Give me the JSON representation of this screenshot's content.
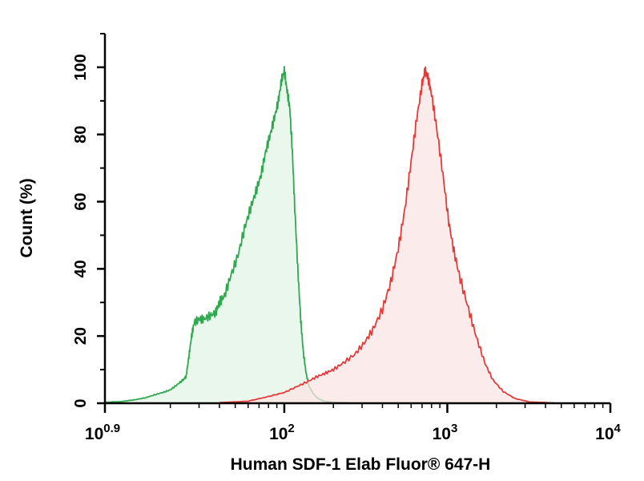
{
  "chart_data": {
    "type": "area",
    "title": "",
    "xlabel": "Human SDF-1 Elab Fluor® 647-H",
    "ylabel": "Count (%)",
    "x_scale": "log10",
    "xlim": [
      7.94,
      10000
    ],
    "ylim": [
      0,
      110
    ],
    "x_ticks": [
      {
        "value": 7.94,
        "base": "10",
        "exp": "0.9"
      },
      {
        "value": 100,
        "base": "10",
        "exp": "2"
      },
      {
        "value": 1000,
        "base": "10",
        "exp": "3"
      },
      {
        "value": 10000,
        "base": "10",
        "exp": "4"
      }
    ],
    "y_ticks": [
      0,
      20,
      40,
      60,
      80,
      100
    ],
    "grid": false,
    "legend": "none",
    "series": [
      {
        "color": "#2fa84f",
        "fill": "#e3f4e6",
        "points": [
          [
            8.0,
            0.3
          ],
          [
            10,
            0.5
          ],
          [
            12,
            1
          ],
          [
            14,
            1.6
          ],
          [
            16,
            2.5
          ],
          [
            18,
            3.2
          ],
          [
            20,
            4
          ],
          [
            22,
            5.5
          ],
          [
            24,
            7
          ],
          [
            25,
            8
          ],
          [
            26,
            14
          ],
          [
            27,
            20
          ],
          [
            28,
            24
          ],
          [
            30,
            25
          ],
          [
            32,
            25
          ],
          [
            35,
            26
          ],
          [
            38,
            27
          ],
          [
            40,
            30
          ],
          [
            43,
            32
          ],
          [
            47,
            38
          ],
          [
            52,
            44
          ],
          [
            57,
            52
          ],
          [
            62,
            58
          ],
          [
            67,
            63
          ],
          [
            72,
            68
          ],
          [
            77,
            75
          ],
          [
            82,
            80
          ],
          [
            87,
            85
          ],
          [
            92,
            90
          ],
          [
            96,
            96
          ],
          [
            100,
            99
          ],
          [
            104,
            93
          ],
          [
            108,
            88
          ],
          [
            112,
            75
          ],
          [
            116,
            58
          ],
          [
            121,
            40
          ],
          [
            126,
            25
          ],
          [
            131,
            15
          ],
          [
            136,
            9
          ],
          [
            142,
            5
          ],
          [
            150,
            3
          ],
          [
            160,
            1.5
          ],
          [
            175,
            0.6
          ],
          [
            200,
            0.3
          ],
          [
            250,
            0.1
          ]
        ]
      },
      {
        "color": "#e53a3a",
        "fill": "#fbe4e4",
        "points": [
          [
            40,
            0.2
          ],
          [
            60,
            0.6
          ],
          [
            80,
            2
          ],
          [
            100,
            3.2
          ],
          [
            120,
            5
          ],
          [
            140,
            6.5
          ],
          [
            160,
            8
          ],
          [
            180,
            9
          ],
          [
            200,
            10
          ],
          [
            230,
            12
          ],
          [
            270,
            14.5
          ],
          [
            310,
            18
          ],
          [
            350,
            22
          ],
          [
            400,
            28
          ],
          [
            450,
            36
          ],
          [
            500,
            46
          ],
          [
            550,
            58
          ],
          [
            600,
            72
          ],
          [
            650,
            85
          ],
          [
            700,
            95
          ],
          [
            730,
            99
          ],
          [
            760,
            97
          ],
          [
            800,
            92
          ],
          [
            860,
            82
          ],
          [
            940,
            68
          ],
          [
            1020,
            54
          ],
          [
            1100,
            45
          ],
          [
            1200,
            37
          ],
          [
            1350,
            28
          ],
          [
            1500,
            20
          ],
          [
            1700,
            12
          ],
          [
            1900,
            7
          ],
          [
            2200,
            3.5
          ],
          [
            2600,
            1.4
          ],
          [
            3200,
            0.4
          ],
          [
            4500,
            0.1
          ]
        ]
      }
    ]
  }
}
